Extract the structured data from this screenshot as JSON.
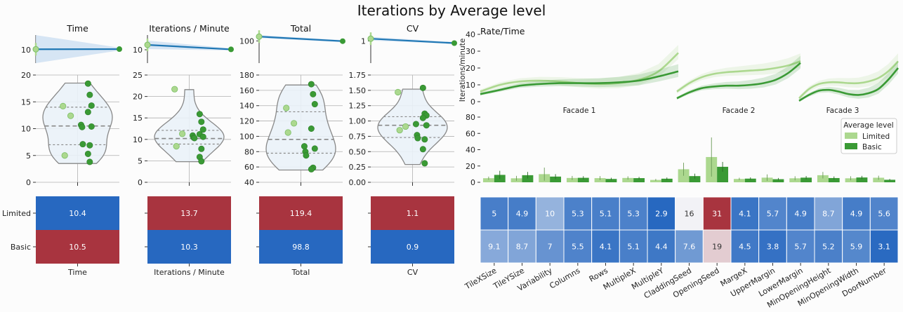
{
  "title": "Iterations by Average level",
  "legend": {
    "title": "Average level",
    "items": [
      {
        "label": "Limited",
        "color": "#acd88f"
      },
      {
        "label": "Basic",
        "color": "#3a9a35"
      }
    ]
  },
  "colors": {
    "limited": "#acd88f",
    "basic": "#3a9a35",
    "trend": "#1f77b4",
    "band": "#cfe1f2",
    "heat_red": "#a8343f",
    "heat_blue": "#2768c0"
  },
  "chart_data": [
    {
      "id": "time",
      "type": "violin-strip",
      "title": "Time",
      "xlabel": "Time",
      "trend": {
        "ylim": [
          0,
          20
        ],
        "yticks": [
          10
        ],
        "start": 10.4,
        "end": 10.5,
        "band_start": [
          0,
          21
        ],
        "band_end": [
          9.5,
          11.6
        ]
      },
      "violin": {
        "ylim": [
          0,
          20
        ],
        "yticks": [
          0,
          5,
          10,
          15,
          20
        ],
        "min": 3.5,
        "max": 18.5,
        "quartiles": [
          7.0,
          10.5,
          14.0
        ],
        "limited": [
          14.2,
          12.4,
          5.0
        ],
        "basic": [
          18.4,
          16.3,
          14.3,
          13.1,
          10.7,
          10.4,
          10.3,
          7.1,
          6.9,
          5.3,
          3.8
        ]
      },
      "heat": {
        "rows": [
          "Limited",
          "Basic"
        ],
        "values": [
          10.4,
          10.5
        ],
        "labels": [
          "10.4",
          "10.5"
        ]
      }
    },
    {
      "id": "ipm",
      "type": "violin-strip",
      "title": "Iterations / Minute",
      "xlabel": "Iterations / Minute",
      "trend": {
        "ylim": [
          0,
          20
        ],
        "yticks": [
          10
        ],
        "start": 13.7,
        "end": 10.3,
        "band_start": [
          10.5,
          16.9
        ],
        "band_end": [
          9.5,
          11.1
        ]
      },
      "violin": {
        "ylim": [
          0,
          25
        ],
        "yticks": [
          0,
          5,
          10,
          15,
          20,
          25
        ],
        "min": 4.8,
        "max": 21.6,
        "quartiles": [
          8.9,
          10.2,
          12.1
        ],
        "limited": [
          21.7,
          11.3,
          8.4
        ],
        "basic": [
          15.9,
          14.1,
          12.3,
          11.2,
          10.9,
          10.6,
          10.4,
          10.3,
          7.8,
          5.9,
          4.9
        ]
      },
      "heat": {
        "rows": [
          "Limited",
          "Basic"
        ],
        "values": [
          13.7,
          10.3
        ],
        "labels": [
          "13.7",
          "10.3"
        ]
      }
    },
    {
      "id": "total",
      "type": "violin-strip",
      "title": "Total",
      "xlabel": "Total",
      "trend": {
        "ylim": [
          0,
          120
        ],
        "yticks": [
          100
        ],
        "start": 119.4,
        "end": 98.8,
        "band_start": [
          113,
          126
        ],
        "band_end": [
          94,
          104
        ]
      },
      "violin": {
        "ylim": [
          40,
          180
        ],
        "yticks": [
          40,
          60,
          80,
          100,
          120,
          140,
          160,
          180
        ],
        "min": 56,
        "max": 167,
        "quartiles": [
          78,
          96,
          132
        ],
        "limited": [
          137,
          117,
          105
        ],
        "basic": [
          168,
          155,
          142,
          110,
          87,
          84,
          80,
          75,
          59,
          57
        ]
      },
      "heat": {
        "rows": [
          "Limited",
          "Basic"
        ],
        "values": [
          119.4,
          98.8
        ],
        "labels": [
          "119.4",
          "98.8"
        ]
      }
    },
    {
      "id": "cv",
      "type": "violin-strip",
      "title": "CV",
      "xlabel": "CV",
      "trend": {
        "ylim": [
          0,
          1.2
        ],
        "yticks": [
          1
        ],
        "start": 1.1,
        "end": 0.9,
        "band_start": [
          1.02,
          1.18
        ],
        "band_end": [
          0.86,
          0.95
        ]
      },
      "violin": {
        "ylim": [
          0,
          1.75
        ],
        "yticks": [
          0.0,
          0.25,
          0.5,
          0.75,
          1.0,
          1.25,
          1.5,
          1.75
        ],
        "labels": [
          "0.00",
          "0.25",
          "0.50",
          "0.75",
          "1.00",
          "1.25",
          "1.50",
          "1.75"
        ],
        "min": 0.29,
        "max": 1.52,
        "quartiles": [
          0.73,
          0.93,
          1.07
        ],
        "limited": [
          1.47,
          0.91,
          0.85
        ],
        "basic": [
          1.54,
          1.12,
          1.09,
          1.05,
          0.95,
          0.93,
          0.77,
          0.72,
          0.7,
          0.54,
          0.31
        ]
      },
      "heat": {
        "rows": [
          "Limited",
          "Basic"
        ],
        "values": [
          1.1,
          0.9
        ],
        "labels": [
          "1.1",
          "0.9"
        ]
      }
    },
    {
      "id": "rate",
      "type": "line",
      "title": "Rate/Time",
      "ylabel": "Iterations/minute",
      "ylim": [
        0,
        40
      ],
      "yticks": [
        0,
        10,
        20,
        30,
        40
      ],
      "facets": [
        {
          "name": "Facade 1",
          "x": [
            0,
            0.1,
            0.2,
            0.3,
            0.4,
            0.5,
            0.6,
            0.7,
            0.8,
            0.9,
            1.0
          ],
          "limited": [
            6,
            10,
            12,
            12.5,
            12,
            11,
            10.5,
            11,
            13,
            18,
            29
          ],
          "basic": [
            4.5,
            7,
            9.5,
            10.5,
            11,
            11,
            11,
            11.5,
            12.5,
            15,
            18
          ]
        },
        {
          "name": "Facade 2",
          "x": [
            0,
            0.1,
            0.2,
            0.3,
            0.4,
            0.5,
            0.6,
            0.7,
            0.8,
            0.9,
            1.0
          ],
          "limited": [
            6,
            11,
            14.5,
            16.5,
            17.5,
            18,
            18.5,
            19,
            20,
            21.5,
            24
          ],
          "basic": [
            2,
            5.5,
            8,
            9,
            9.5,
            9.5,
            10,
            11,
            13,
            17,
            23
          ]
        },
        {
          "name": "Facade 3",
          "x": [
            0,
            0.1,
            0.2,
            0.3,
            0.4,
            0.5,
            0.6,
            0.7,
            0.8,
            0.9,
            1.0
          ],
          "limited": [
            2,
            7.5,
            10.5,
            11.5,
            11.5,
            11,
            11,
            12,
            14,
            18,
            24
          ],
          "basic": [
            0.5,
            4,
            6.5,
            7,
            6,
            4.5,
            4,
            5,
            7.5,
            13,
            20
          ]
        }
      ]
    },
    {
      "id": "params",
      "type": "bar",
      "ylim": [
        0,
        80
      ],
      "yticks": [
        0,
        20,
        40,
        60,
        80
      ],
      "categories": [
        "TileXSize",
        "TileYSize",
        "Variability",
        "Columns",
        "Rows",
        "MultipleX",
        "MultipleY",
        "CladdingSeed",
        "OpeningSeed",
        "MargeX",
        "UpperMargin",
        "LowerMargin",
        "MinOpeningHeight",
        "MinOpeningWidth",
        "DoorNumber"
      ],
      "series": [
        {
          "name": "Limited",
          "values": [
            5,
            4.9,
            10,
            5.3,
            5.1,
            5.3,
            2.9,
            16,
            31,
            4.1,
            5.7,
            4.9,
            8.7,
            4.9,
            5.6
          ],
          "err": [
            2,
            3,
            8,
            2.5,
            2.5,
            2,
            1.2,
            8,
            24,
            1.5,
            4,
            2.5,
            4,
            2.5,
            2.5
          ]
        },
        {
          "name": "Basic",
          "values": [
            9.1,
            8.7,
            7,
            5.5,
            4.1,
            5.1,
            4.4,
            7.6,
            19,
            4.5,
            3.8,
            5.7,
            5.2,
            5.9,
            3.1
          ],
          "err": [
            5,
            4,
            3,
            2,
            1.5,
            1.5,
            1.5,
            3,
            6,
            1.5,
            1.5,
            2,
            2,
            2,
            1
          ]
        }
      ]
    },
    {
      "id": "params-heat",
      "type": "heatmap",
      "rows": [
        "Limited",
        "Basic"
      ],
      "values": [
        [
          5,
          4.9,
          10,
          5.3,
          5.1,
          5.3,
          2.9,
          16,
          31,
          4.1,
          5.7,
          4.9,
          8.7,
          4.9,
          5.6
        ],
        [
          9.1,
          8.7,
          7,
          5.5,
          4.1,
          5.1,
          4.4,
          7.6,
          19,
          4.5,
          3.8,
          5.7,
          5.2,
          5.9,
          3.1
        ]
      ],
      "labels": [
        [
          "5",
          "4.9",
          "10",
          "5.3",
          "5.1",
          "5.3",
          "2.9",
          "16",
          "31",
          "4.1",
          "5.7",
          "4.9",
          "8.7",
          "4.9",
          "5.6"
        ],
        [
          "9.1",
          "8.7",
          "7",
          "5.5",
          "4.1",
          "5.1",
          "4.4",
          "7.6",
          "19",
          "4.5",
          "3.8",
          "5.7",
          "5.2",
          "5.9",
          "3.1"
        ]
      ]
    }
  ]
}
